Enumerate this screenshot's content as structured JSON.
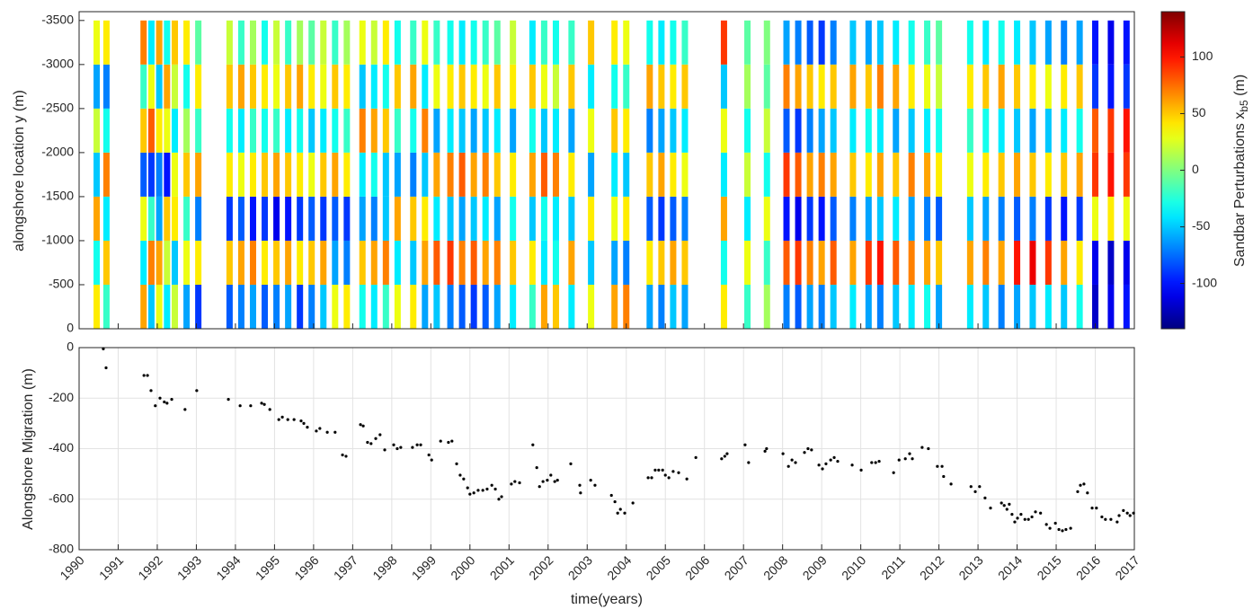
{
  "chart_data": [
    {
      "type": "heatmap",
      "ylabel": "alongshore location y (m)",
      "colorbar_label": "Sandbar Perturbations x",
      "colorbar_label_sub": "b5",
      "colorbar_label_unit": " (m)",
      "xlim": [
        1990,
        2017
      ],
      "ylim": [
        0,
        -3600
      ],
      "yticks": [
        0,
        -500,
        -1000,
        -1500,
        -2000,
        -2500,
        -3000,
        -3500
      ],
      "clim": [
        -140,
        140
      ],
      "colorbar_ticks": [
        -100,
        -50,
        0,
        50,
        100
      ],
      "y": [
        -250,
        -750,
        -1250,
        -1750,
        -2250,
        -2750,
        -3250
      ],
      "x": [
        1990.45,
        1990.7,
        1991.65,
        1991.85,
        1992.05,
        1992.25,
        1992.45,
        1992.75,
        1993.05,
        1993.85,
        1994.15,
        1994.45,
        1994.75,
        1995.05,
        1995.35,
        1995.65,
        1995.95,
        1996.25,
        1996.55,
        1996.85,
        1997.25,
        1997.55,
        1997.85,
        1998.15,
        1998.55,
        1998.85,
        1999.15,
        1999.5,
        1999.8,
        2000.1,
        2000.4,
        2000.7,
        2001.1,
        2001.6,
        2001.9,
        2002.2,
        2002.6,
        2003.1,
        2003.7,
        2004.0,
        2004.6,
        2004.9,
        2005.2,
        2005.5,
        2006.5,
        2007.1,
        2007.6,
        2008.1,
        2008.4,
        2008.7,
        2009.0,
        2009.3,
        2009.8,
        2010.2,
        2010.5,
        2010.9,
        2011.3,
        2011.7,
        2012.0,
        2012.8,
        2013.2,
        2013.6,
        2014.0,
        2014.4,
        2014.8,
        2015.2,
        2015.6,
        2016.0,
        2016.4,
        2016.8
      ],
      "values": [
        [
          40,
          -30,
          60,
          -50,
          20,
          -60,
          30
        ],
        [
          -20,
          50,
          -40,
          70,
          -30,
          -70,
          40
        ],
        [
          60,
          -40,
          30,
          -80,
          50,
          -20,
          70
        ],
        [
          -50,
          70,
          -20,
          -90,
          80,
          30,
          -40
        ],
        [
          30,
          60,
          -60,
          -70,
          40,
          -50,
          60
        ],
        [
          -40,
          20,
          50,
          -100,
          30,
          60,
          -30
        ],
        [
          20,
          -50,
          40,
          30,
          -40,
          20,
          50
        ],
        [
          -60,
          30,
          -20,
          50,
          10,
          -30,
          40
        ],
        [
          -90,
          40,
          -70,
          60,
          -20,
          40,
          -10
        ],
        [
          -80,
          50,
          -90,
          40,
          -30,
          50,
          20
        ],
        [
          -70,
          60,
          -80,
          30,
          -40,
          60,
          -20
        ],
        [
          -60,
          70,
          -100,
          40,
          -20,
          50,
          10
        ],
        [
          -80,
          40,
          -90,
          50,
          -30,
          40,
          -30
        ],
        [
          -70,
          50,
          -110,
          60,
          -20,
          30,
          20
        ],
        [
          -60,
          60,
          -100,
          50,
          -40,
          50,
          -20
        ],
        [
          -90,
          40,
          -90,
          40,
          -30,
          60,
          10
        ],
        [
          -70,
          50,
          -80,
          30,
          -50,
          40,
          -10
        ],
        [
          -50,
          60,
          -90,
          50,
          -40,
          30,
          20
        ],
        [
          30,
          -60,
          -80,
          60,
          -30,
          50,
          -20
        ],
        [
          40,
          -70,
          -90,
          40,
          -20,
          40,
          10
        ],
        [
          -30,
          50,
          -60,
          -40,
          70,
          -50,
          30
        ],
        [
          -40,
          60,
          -70,
          -30,
          60,
          -40,
          20
        ],
        [
          -20,
          70,
          -50,
          -50,
          50,
          -30,
          40
        ],
        [
          30,
          -40,
          60,
          -60,
          -20,
          50,
          -30
        ],
        [
          40,
          -50,
          50,
          -70,
          -30,
          60,
          -20
        ],
        [
          -60,
          60,
          40,
          -50,
          70,
          -40,
          30
        ],
        [
          -50,
          80,
          -40,
          60,
          -60,
          30,
          -20
        ],
        [
          -70,
          90,
          -50,
          70,
          -40,
          40,
          -30
        ],
        [
          -80,
          70,
          -60,
          80,
          -50,
          50,
          -40
        ],
        [
          -90,
          80,
          -50,
          60,
          -60,
          40,
          -30
        ],
        [
          -80,
          60,
          -40,
          70,
          -50,
          30,
          -20
        ],
        [
          -60,
          70,
          -60,
          50,
          -40,
          50,
          -10
        ],
        [
          -40,
          50,
          -30,
          40,
          -60,
          40,
          20
        ],
        [
          -20,
          40,
          -50,
          60,
          -30,
          50,
          -40
        ],
        [
          60,
          -40,
          -30,
          80,
          -50,
          30,
          -20
        ],
        [
          50,
          -30,
          -40,
          70,
          -40,
          20,
          -30
        ],
        [
          -40,
          60,
          -50,
          40,
          -60,
          50,
          -20
        ],
        [
          30,
          -50,
          40,
          -60,
          30,
          -40,
          50
        ],
        [
          60,
          -60,
          30,
          -40,
          50,
          -30,
          40
        ],
        [
          70,
          -70,
          40,
          -50,
          40,
          -20,
          30
        ],
        [
          -60,
          40,
          -80,
          50,
          -70,
          60,
          -30
        ],
        [
          -70,
          50,
          -90,
          60,
          -60,
          50,
          -40
        ],
        [
          -50,
          60,
          -80,
          40,
          -50,
          40,
          -30
        ],
        [
          -60,
          50,
          -70,
          30,
          -40,
          50,
          -20
        ],
        [
          40,
          -30,
          60,
          -40,
          30,
          -50,
          90
        ],
        [
          -20,
          30,
          -40,
          20,
          -30,
          10,
          -10
        ],
        [
          10,
          -20,
          30,
          -30,
          20,
          -10,
          0
        ],
        [
          -70,
          80,
          -100,
          90,
          -80,
          70,
          -60
        ],
        [
          -80,
          90,
          -110,
          80,
          -90,
          60,
          -70
        ],
        [
          -60,
          70,
          -90,
          60,
          -70,
          50,
          -80
        ],
        [
          -70,
          60,
          -100,
          70,
          -60,
          40,
          -90
        ],
        [
          -50,
          80,
          -80,
          60,
          -50,
          50,
          -70
        ],
        [
          -40,
          60,
          -70,
          50,
          -40,
          60,
          -50
        ],
        [
          -60,
          90,
          -60,
          40,
          -30,
          50,
          -60
        ],
        [
          -70,
          100,
          -50,
          60,
          -40,
          70,
          -50
        ],
        [
          -50,
          80,
          -40,
          50,
          -60,
          60,
          -40
        ],
        [
          -40,
          70,
          -60,
          70,
          -50,
          40,
          -30
        ],
        [
          -30,
          60,
          -70,
          60,
          -40,
          30,
          -20
        ],
        [
          -60,
          50,
          -80,
          40,
          -30,
          20,
          -10
        ],
        [
          -40,
          60,
          -50,
          30,
          -20,
          40,
          -30
        ],
        [
          -50,
          70,
          -60,
          40,
          -30,
          50,
          -40
        ],
        [
          -70,
          60,
          -70,
          50,
          -40,
          60,
          -30
        ],
        [
          -60,
          100,
          -80,
          60,
          -50,
          50,
          -40
        ],
        [
          -50,
          110,
          -70,
          50,
          -60,
          40,
          -50
        ],
        [
          -40,
          90,
          -90,
          40,
          -50,
          30,
          -60
        ],
        [
          -50,
          60,
          -100,
          50,
          -40,
          40,
          -70
        ],
        [
          -30,
          40,
          -90,
          60,
          -30,
          50,
          -60
        ],
        [
          -120,
          -110,
          30,
          90,
          80,
          -90,
          -100
        ],
        [
          -110,
          -120,
          40,
          100,
          90,
          -100,
          -110
        ],
        [
          -100,
          -110,
          30,
          90,
          100,
          -90,
          -100
        ]
      ]
    },
    {
      "type": "scatter",
      "xlabel": "time(years)",
      "ylabel": "Alongshore Migration (m)",
      "color": "#000000",
      "grid": true,
      "xlim": [
        1990,
        2017
      ],
      "xticks": [
        1990,
        1991,
        1992,
        1993,
        1994,
        1995,
        1996,
        1997,
        1998,
        1999,
        2000,
        2001,
        2002,
        2003,
        2004,
        2005,
        2006,
        2007,
        2008,
        2009,
        2010,
        2011,
        2012,
        2013,
        2014,
        2015,
        2016,
        2017
      ],
      "ylim": [
        -800,
        0
      ],
      "yticks": [
        -800,
        -600,
        -400,
        -200,
        0
      ],
      "x": [
        1990.62,
        1990.69,
        1991.66,
        1991.75,
        1991.84,
        1991.95,
        1992.07,
        1992.18,
        1992.25,
        1992.37,
        1992.71,
        1993.01,
        1993.82,
        1994.12,
        1994.39,
        1994.67,
        1994.74,
        1994.88,
        1995.11,
        1995.2,
        1995.34,
        1995.5,
        1995.68,
        1995.75,
        1995.84,
        1996.07,
        1996.16,
        1996.35,
        1996.55,
        1996.74,
        1996.83,
        1997.2,
        1997.27,
        1997.38,
        1997.47,
        1997.59,
        1997.7,
        1997.82,
        1998.05,
        1998.14,
        1998.23,
        1998.53,
        1998.65,
        1998.74,
        1998.95,
        1999.02,
        1999.25,
        1999.45,
        1999.54,
        1999.66,
        1999.75,
        1999.84,
        1999.94,
        2000.0,
        2000.1,
        2000.21,
        2000.33,
        2000.44,
        2000.56,
        2000.65,
        2000.74,
        2000.81,
        2001.06,
        2001.15,
        2001.27,
        2001.61,
        2001.71,
        2001.78,
        2001.87,
        2001.98,
        2002.07,
        2002.17,
        2002.24,
        2002.58,
        2002.81,
        2002.83,
        2003.09,
        2003.2,
        2003.62,
        2003.71,
        2003.78,
        2003.85,
        2003.96,
        2004.17,
        2004.56,
        2004.65,
        2004.74,
        2004.83,
        2004.93,
        2005.0,
        2005.09,
        2005.2,
        2005.34,
        2005.55,
        2005.78,
        2006.44,
        2006.52,
        2006.58,
        2007.04,
        2007.13,
        2007.55,
        2007.59,
        2008.01,
        2008.15,
        2008.24,
        2008.33,
        2008.56,
        2008.65,
        2008.74,
        2008.93,
        2009.02,
        2009.11,
        2009.23,
        2009.32,
        2009.41,
        2009.78,
        2010.01,
        2010.28,
        2010.38,
        2010.47,
        2010.84,
        2010.98,
        2011.14,
        2011.25,
        2011.32,
        2011.57,
        2011.73,
        2011.96,
        2012.08,
        2012.12,
        2012.31,
        2012.82,
        2012.93,
        2013.04,
        2013.18,
        2013.32,
        2013.6,
        2013.67,
        2013.74,
        2013.8,
        2013.87,
        2013.94,
        2014.01,
        2014.1,
        2014.2,
        2014.29,
        2014.38,
        2014.47,
        2014.6,
        2014.75,
        2014.84,
        2014.98,
        2015.07,
        2015.16,
        2015.25,
        2015.37,
        2015.55,
        2015.62,
        2015.71,
        2015.8,
        2015.92,
        2016.03,
        2016.17,
        2016.26,
        2016.4,
        2016.56,
        2016.61,
        2016.72,
        2016.82,
        2016.89,
        2016.98
      ],
      "values": [
        -5,
        -80,
        -110,
        -110,
        -170,
        -230,
        -200,
        -215,
        -220,
        -205,
        -245,
        -170,
        -205,
        -230,
        -230,
        -220,
        -225,
        -245,
        -285,
        -275,
        -285,
        -285,
        -290,
        -300,
        -315,
        -330,
        -320,
        -335,
        -335,
        -425,
        -430,
        -305,
        -310,
        -375,
        -380,
        -360,
        -345,
        -405,
        -385,
        -400,
        -395,
        -395,
        -385,
        -385,
        -425,
        -445,
        -370,
        -375,
        -370,
        -460,
        -505,
        -520,
        -555,
        -580,
        -575,
        -565,
        -565,
        -560,
        -545,
        -560,
        -600,
        -590,
        -540,
        -530,
        -535,
        -385,
        -475,
        -550,
        -530,
        -525,
        -505,
        -530,
        -525,
        -460,
        -545,
        -575,
        -525,
        -545,
        -585,
        -610,
        -655,
        -640,
        -655,
        -615,
        -515,
        -515,
        -485,
        -485,
        -485,
        -505,
        -515,
        -490,
        -495,
        -520,
        -435,
        -440,
        -430,
        -420,
        -385,
        -455,
        -410,
        -400,
        -420,
        -470,
        -445,
        -455,
        -415,
        -400,
        -405,
        -465,
        -480,
        -460,
        -445,
        -435,
        -450,
        -465,
        -485,
        -455,
        -455,
        -450,
        -495,
        -445,
        -440,
        -420,
        -440,
        -395,
        -400,
        -470,
        -470,
        -510,
        -540,
        -550,
        -570,
        -550,
        -595,
        -635,
        -615,
        -625,
        -640,
        -620,
        -660,
        -690,
        -675,
        -660,
        -680,
        -680,
        -670,
        -650,
        -655,
        -700,
        -715,
        -695,
        -720,
        -725,
        -720,
        -715,
        -570,
        -545,
        -540,
        -575,
        -635,
        -635,
        -670,
        -680,
        -680,
        -690,
        -665,
        -645,
        -655,
        -665,
        -655
      ]
    }
  ]
}
